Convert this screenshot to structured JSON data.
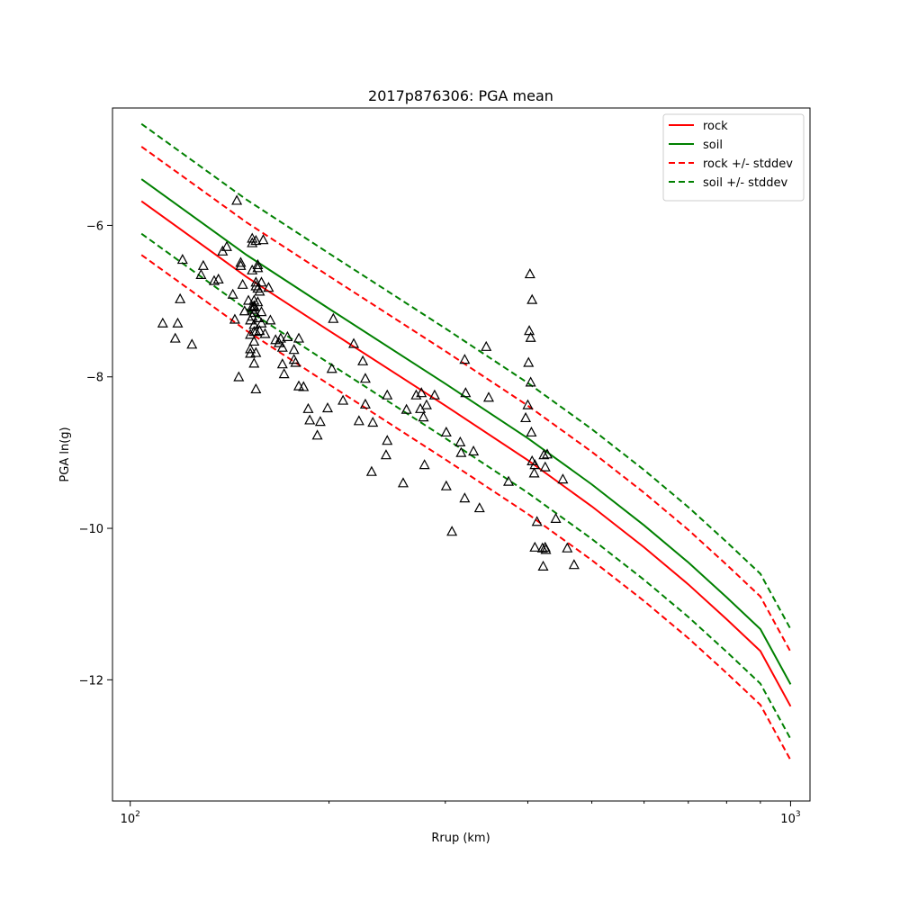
{
  "chart_data": {
    "type": "scatter",
    "title": "2017p876306: PGA mean",
    "xlabel": "Rrup (km)",
    "ylabel": "PGA ln(g)",
    "xscale": "log",
    "xlim": [
      94,
      1070
    ],
    "ylim": [
      -13.6,
      -4.45
    ],
    "xticks": [
      {
        "value": 100,
        "base": "10",
        "exp": "2"
      },
      {
        "value": 1000,
        "base": "10",
        "exp": "3"
      }
    ],
    "yticks": [
      {
        "value": -6,
        "label": "−6"
      },
      {
        "value": -8,
        "label": "−8"
      },
      {
        "value": -10,
        "label": "−10"
      },
      {
        "value": -12,
        "label": "−12"
      }
    ],
    "grid": false,
    "legend_position": "top-right",
    "lines": [
      {
        "name": "rock",
        "color": "#ff0000",
        "dash": false,
        "x": [
          104,
          150,
          200,
          300,
          400,
          500,
          600,
          700,
          800,
          900,
          1000
        ],
        "y": [
          -5.68,
          -6.68,
          -7.39,
          -8.38,
          -9.1,
          -9.71,
          -10.25,
          -10.74,
          -11.2,
          -11.62,
          -12.35
        ]
      },
      {
        "name": "soil",
        "color": "#008000",
        "dash": false,
        "x": [
          104,
          150,
          200,
          300,
          400,
          500,
          600,
          700,
          800,
          900,
          1000
        ],
        "y": [
          -5.39,
          -6.39,
          -7.1,
          -8.09,
          -8.81,
          -9.42,
          -9.96,
          -10.45,
          -10.91,
          -11.33,
          -12.06
        ]
      },
      {
        "name": "rock +/- stddev",
        "color": "#ff0000",
        "dash": true,
        "x": [
          104,
          150,
          200,
          300,
          400,
          500,
          600,
          700,
          800,
          900,
          1000
        ],
        "y": [
          -4.96,
          -5.96,
          -6.67,
          -7.66,
          -8.38,
          -8.99,
          -9.53,
          -10.02,
          -10.48,
          -10.9,
          -11.63
        ]
      },
      {
        "name": "",
        "color": "#ff0000",
        "dash": true,
        "x": [
          104,
          150,
          200,
          300,
          400,
          500,
          600,
          700,
          800,
          900,
          1000
        ],
        "y": [
          -6.39,
          -7.39,
          -8.1,
          -9.09,
          -9.81,
          -10.42,
          -10.96,
          -11.45,
          -11.91,
          -12.33,
          -13.06
        ]
      },
      {
        "name": "soil +/- stddev",
        "color": "#008000",
        "dash": true,
        "x": [
          104,
          150,
          200,
          300,
          400,
          500,
          600,
          700,
          800,
          900,
          1000
        ],
        "y": [
          -4.66,
          -5.66,
          -6.37,
          -7.36,
          -8.08,
          -8.69,
          -9.23,
          -9.72,
          -10.18,
          -10.6,
          -11.33
        ]
      },
      {
        "name": "",
        "color": "#008000",
        "dash": true,
        "x": [
          104,
          150,
          200,
          300,
          400,
          500,
          600,
          700,
          800,
          900,
          1000
        ],
        "y": [
          -6.11,
          -7.11,
          -7.82,
          -8.81,
          -9.53,
          -10.14,
          -10.68,
          -11.17,
          -11.63,
          -12.05,
          -12.78
        ]
      }
    ],
    "points": {
      "marker": "triangle",
      "color": "#000000",
      "x": [
        112,
        117,
        118,
        119,
        120,
        124,
        128,
        129,
        134,
        136,
        138,
        140,
        143,
        144,
        145,
        146,
        147,
        147,
        148,
        149,
        151,
        152,
        152,
        152,
        152,
        153,
        153,
        153,
        153,
        153,
        153,
        154,
        154,
        154,
        154,
        154,
        154,
        154,
        154,
        155,
        155,
        155,
        155,
        155,
        155,
        156,
        156,
        156,
        156,
        156,
        157,
        157,
        158,
        158,
        158,
        159,
        160,
        162,
        163,
        166,
        168,
        169,
        170,
        170,
        171,
        173,
        177,
        177,
        178,
        180,
        180,
        183,
        186,
        187,
        192,
        194,
        199,
        202,
        203,
        210,
        218,
        222,
        225,
        227,
        227,
        232,
        233,
        244,
        245,
        245,
        259,
        262,
        271,
        275,
        276,
        278,
        279,
        281,
        289,
        301,
        301,
        307,
        316,
        317,
        321,
        321,
        322,
        331,
        338,
        346,
        349,
        374,
        397,
        400,
        401,
        402,
        403,
        404,
        404,
        405,
        406,
        406,
        409,
        410,
        410,
        413,
        421,
        422,
        423,
        425,
        425,
        426,
        428,
        441,
        452,
        459,
        470
      ],
      "y": [
        -7.29,
        -7.49,
        -7.29,
        -6.97,
        -6.45,
        -7.57,
        -6.65,
        -6.53,
        -6.73,
        -6.71,
        -6.34,
        -6.28,
        -6.91,
        -7.24,
        -5.67,
        -8.0,
        -6.49,
        -6.53,
        -6.78,
        -7.13,
        -6.99,
        -7.25,
        -7.44,
        -7.69,
        -7.63,
        -6.23,
        -6.17,
        -7.11,
        -7.2,
        -7.07,
        -6.59,
        -7.08,
        -7.4,
        -7.53,
        -7.82,
        -7.31,
        -7.06,
        -6.99,
        -7.15,
        -6.75,
        -6.2,
        -7.4,
        -7.68,
        -6.8,
        -8.16,
        -6.52,
        -6.56,
        -6.83,
        -7.01,
        -7.22,
        -6.87,
        -7.39,
        -6.75,
        -7.14,
        -7.29,
        -6.19,
        -7.43,
        -6.82,
        -7.25,
        -7.51,
        -7.55,
        -7.49,
        -7.61,
        -7.83,
        -7.96,
        -7.47,
        -7.64,
        -7.77,
        -7.81,
        -8.12,
        -7.49,
        -8.13,
        -8.42,
        -8.57,
        -8.77,
        -8.59,
        -8.41,
        -7.89,
        -7.23,
        -8.31,
        -7.56,
        -8.58,
        -7.79,
        -8.36,
        -8.02,
        -9.25,
        -8.6,
        -9.03,
        -8.24,
        -8.84,
        -9.4,
        -8.43,
        -8.24,
        -8.42,
        -8.21,
        -8.53,
        -9.16,
        -8.37,
        -8.24,
        -9.44,
        -8.73,
        -10.04,
        -8.86,
        -9.0,
        -9.6,
        -7.77,
        -8.21,
        -8.98,
        -9.73,
        -7.6,
        -8.27,
        -9.38,
        -8.54,
        -8.37,
        -7.81,
        -7.39,
        -6.64,
        -7.48,
        -8.07,
        -8.73,
        -6.98,
        -9.11,
        -9.27,
        -9.16,
        -10.25,
        -9.91,
        -10.26,
        -10.5,
        -9.03,
        -9.19,
        -10.25,
        -10.28,
        -9.02,
        -9.87,
        -9.35,
        -10.26,
        -10.48
      ]
    },
    "legend": [
      {
        "label": "rock",
        "color": "#ff0000",
        "dash": false
      },
      {
        "label": "soil",
        "color": "#008000",
        "dash": false
      },
      {
        "label": "rock +/- stddev",
        "color": "#ff0000",
        "dash": true
      },
      {
        "label": "soil +/- stddev",
        "color": "#008000",
        "dash": true
      }
    ]
  }
}
